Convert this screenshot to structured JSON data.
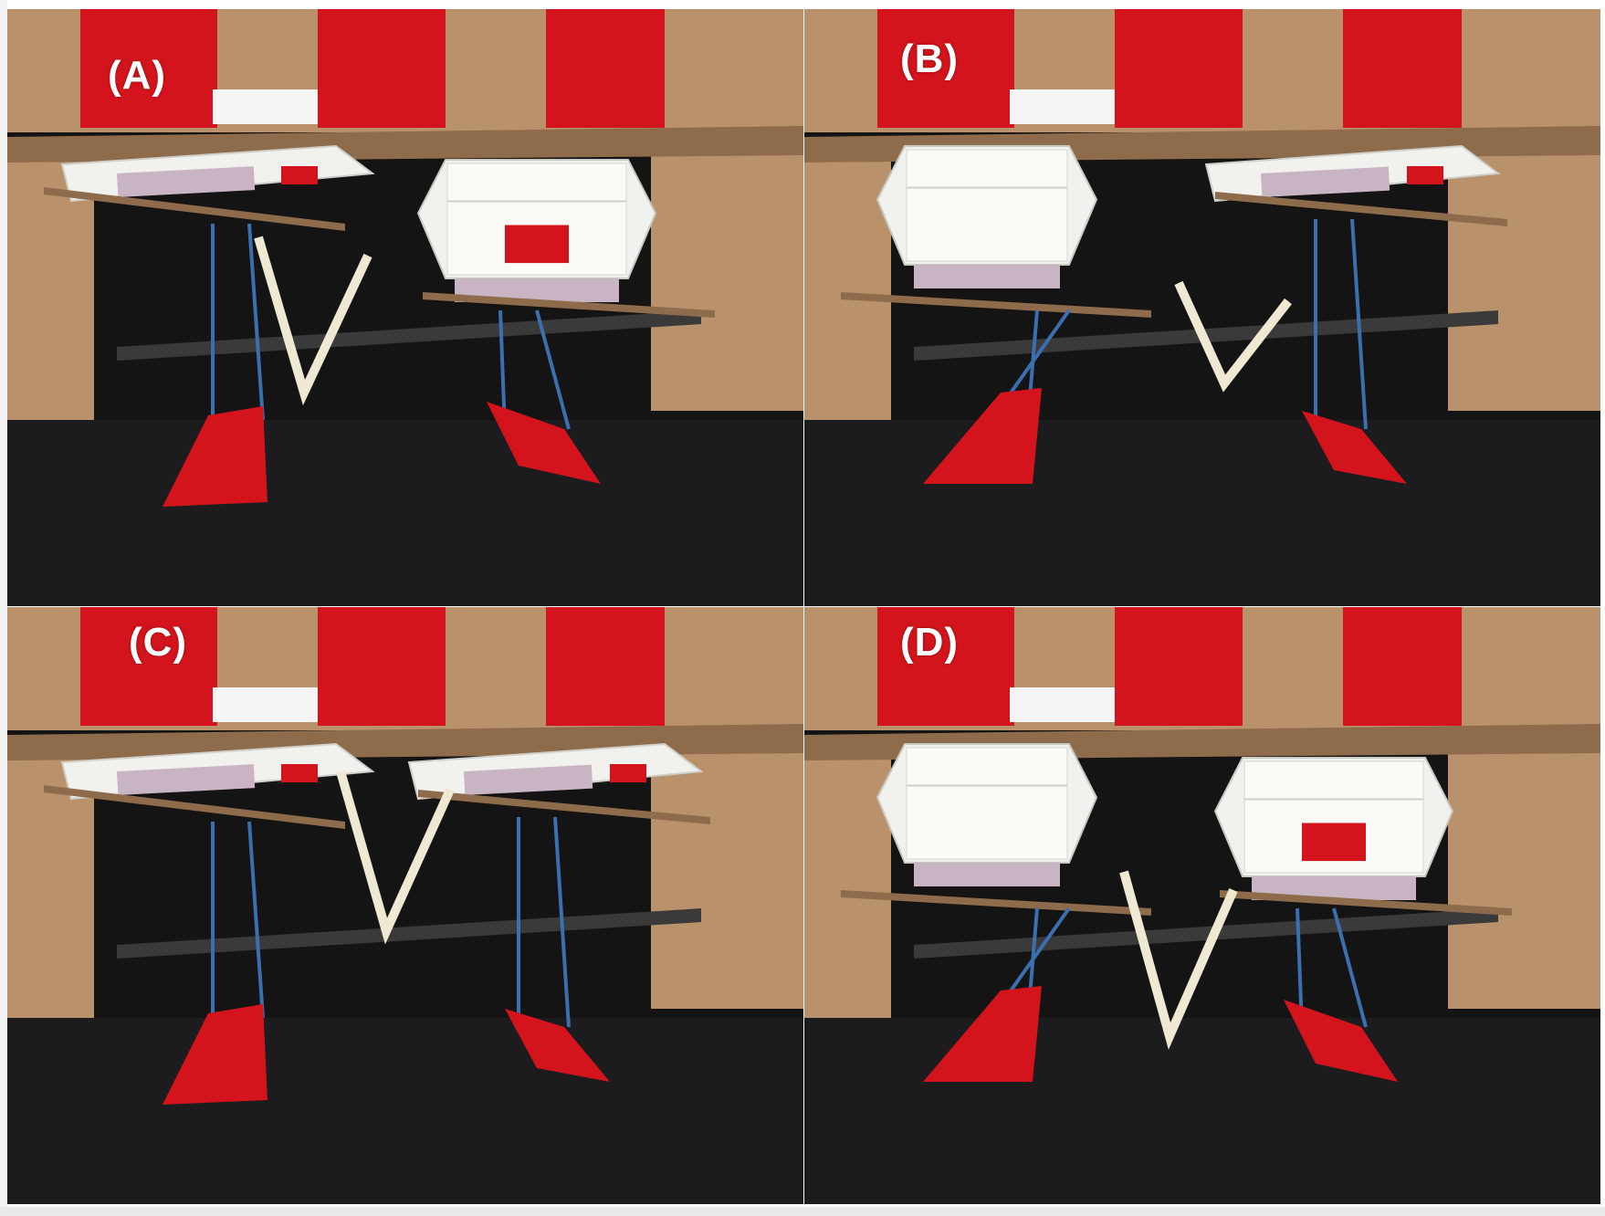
{
  "figure": {
    "panels": [
      {
        "id": "A",
        "label": "(A)",
        "left_box": "collapsed",
        "right_box": "expanded"
      },
      {
        "id": "B",
        "label": "(B)",
        "left_box": "expanded",
        "right_box": "collapsed"
      },
      {
        "id": "C",
        "label": "(C)",
        "left_box": "collapsed",
        "right_box": "collapsed"
      },
      {
        "id": "D",
        "label": "(D)",
        "left_box": "expanded",
        "right_box": "expanded"
      }
    ]
  },
  "colors": {
    "cardboard": "#b9916a",
    "cardboard_dark": "#8e6b4a",
    "tape_red": "#d4141c",
    "tape_blue": "#2d5aa8",
    "paper_white": "#f1f1ee",
    "tape_lilac": "#c9b4c4",
    "background_dark": "#141414",
    "table": "#1c1b1d",
    "string_blue": "#3a6fb0"
  }
}
